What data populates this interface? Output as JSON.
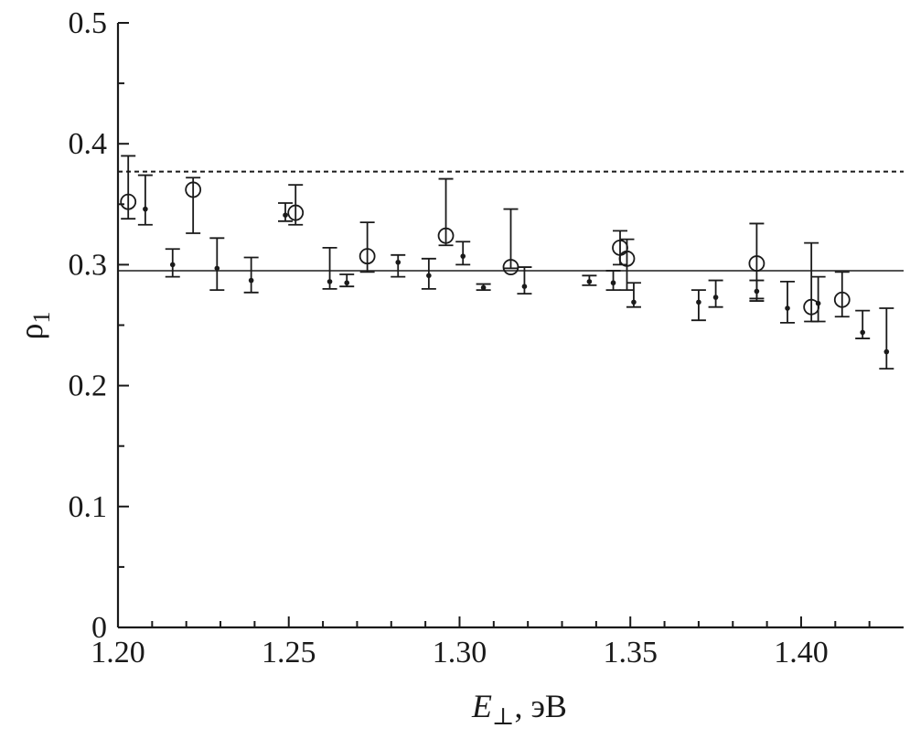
{
  "chart_data": {
    "type": "scatter",
    "xlabel": {
      "variable": "E",
      "subscript": "⊥",
      "unit": ", эВ"
    },
    "ylabel": {
      "symbol": "ρ",
      "subscript": "1"
    },
    "xlim": [
      1.2,
      1.43
    ],
    "ylim": [
      0,
      0.5
    ],
    "xticks": [
      "1.20",
      "1.25",
      "1.30",
      "1.35",
      "1.40"
    ],
    "yticks": [
      "0",
      "0.1",
      "0.2",
      "0.3",
      "0.4",
      "0.5"
    ],
    "grid": false,
    "legend": "none",
    "reference_lines": [
      {
        "style": "dashed",
        "y": 0.377
      },
      {
        "style": "solid",
        "y": 0.295
      }
    ],
    "series": [
      {
        "marker": "filled-dot",
        "points": [
          {
            "x": 1.208,
            "y": 0.346,
            "lo": 0.333,
            "hi": 0.374
          },
          {
            "x": 1.216,
            "y": 0.3,
            "lo": 0.29,
            "hi": 0.313
          },
          {
            "x": 1.229,
            "y": 0.297,
            "lo": 0.279,
            "hi": 0.322
          },
          {
            "x": 1.239,
            "y": 0.287,
            "lo": 0.277,
            "hi": 0.306
          },
          {
            "x": 1.249,
            "y": 0.341,
            "lo": 0.336,
            "hi": 0.351
          },
          {
            "x": 1.262,
            "y": 0.286,
            "lo": 0.28,
            "hi": 0.314
          },
          {
            "x": 1.267,
            "y": 0.285,
            "lo": 0.282,
            "hi": 0.292
          },
          {
            "x": 1.282,
            "y": 0.302,
            "lo": 0.29,
            "hi": 0.308
          },
          {
            "x": 1.291,
            "y": 0.291,
            "lo": 0.28,
            "hi": 0.305
          },
          {
            "x": 1.301,
            "y": 0.307,
            "lo": 0.3,
            "hi": 0.319
          },
          {
            "x": 1.307,
            "y": 0.281,
            "lo": 0.279,
            "hi": 0.284
          },
          {
            "x": 1.319,
            "y": 0.282,
            "lo": 0.276,
            "hi": 0.298
          },
          {
            "x": 1.338,
            "y": 0.286,
            "lo": 0.283,
            "hi": 0.291
          },
          {
            "x": 1.345,
            "y": 0.285,
            "lo": 0.279,
            "hi": 0.295
          },
          {
            "x": 1.351,
            "y": 0.269,
            "lo": 0.265,
            "hi": 0.285
          },
          {
            "x": 1.37,
            "y": 0.269,
            "lo": 0.254,
            "hi": 0.279
          },
          {
            "x": 1.375,
            "y": 0.273,
            "lo": 0.265,
            "hi": 0.287
          },
          {
            "x": 1.387,
            "y": 0.278,
            "lo": 0.27,
            "hi": 0.287
          },
          {
            "x": 1.396,
            "y": 0.264,
            "lo": 0.252,
            "hi": 0.286
          },
          {
            "x": 1.405,
            "y": 0.268,
            "lo": 0.253,
            "hi": 0.29
          },
          {
            "x": 1.418,
            "y": 0.244,
            "lo": 0.239,
            "hi": 0.262
          },
          {
            "x": 1.425,
            "y": 0.228,
            "lo": 0.214,
            "hi": 0.264
          }
        ]
      },
      {
        "marker": "open-circle",
        "points": [
          {
            "x": 1.203,
            "y": 0.352,
            "lo": 0.338,
            "hi": 0.39
          },
          {
            "x": 1.222,
            "y": 0.362,
            "lo": 0.326,
            "hi": 0.372
          },
          {
            "x": 1.252,
            "y": 0.343,
            "lo": 0.333,
            "hi": 0.366
          },
          {
            "x": 1.273,
            "y": 0.307,
            "lo": 0.294,
            "hi": 0.335
          },
          {
            "x": 1.296,
            "y": 0.324,
            "lo": 0.316,
            "hi": 0.371
          },
          {
            "x": 1.315,
            "y": 0.298,
            "lo": 0.297,
            "hi": 0.346
          },
          {
            "x": 1.347,
            "y": 0.314,
            "lo": 0.3,
            "hi": 0.328
          },
          {
            "x": 1.349,
            "y": 0.305,
            "lo": 0.279,
            "hi": 0.321
          },
          {
            "x": 1.387,
            "y": 0.301,
            "lo": 0.272,
            "hi": 0.334
          },
          {
            "x": 1.403,
            "y": 0.265,
            "lo": 0.253,
            "hi": 0.318
          },
          {
            "x": 1.412,
            "y": 0.271,
            "lo": 0.257,
            "hi": 0.294
          }
        ]
      }
    ]
  }
}
